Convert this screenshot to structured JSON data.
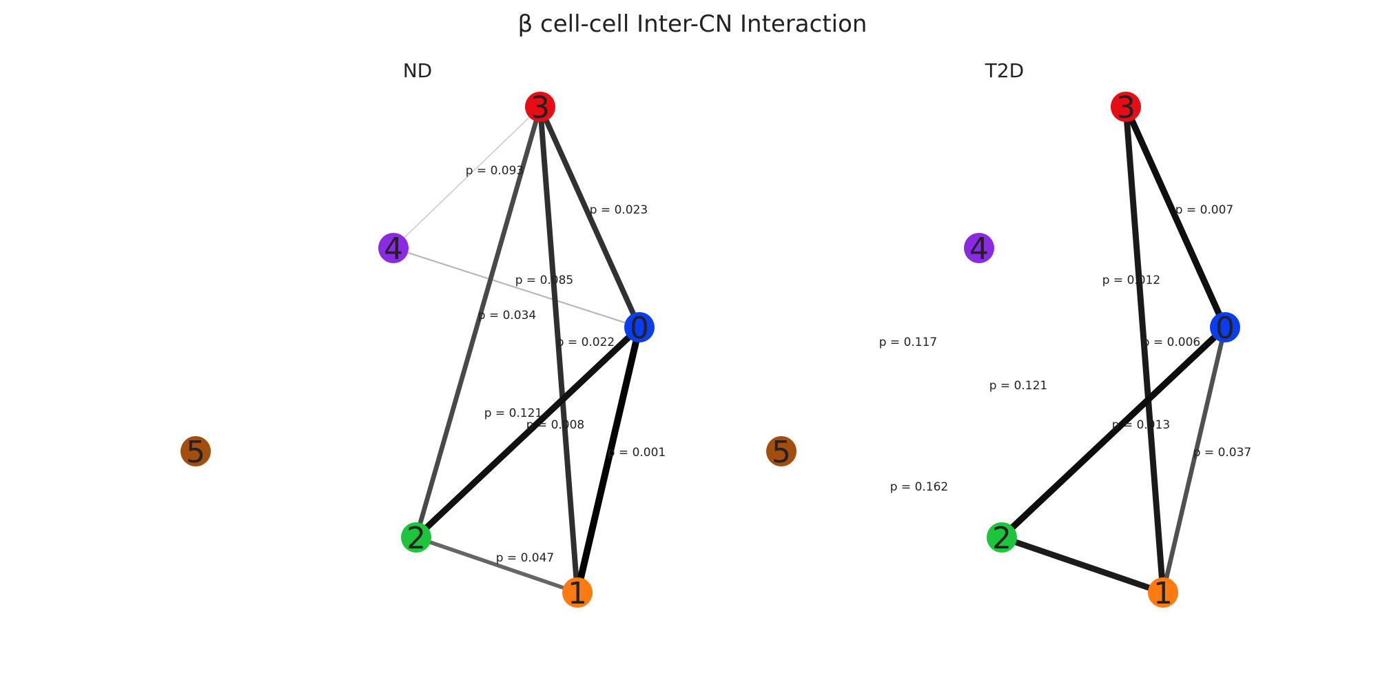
{
  "title": "β cell-cell Inter-CN Interaction",
  "node_colors": {
    "0": "#0a3cf0",
    "1": "#ff7a10",
    "2": "#1ec43c",
    "3": "#e80c14",
    "4": "#8a2be2",
    "5": "#a34d0f"
  },
  "panels": [
    {
      "name": "ND",
      "title": "ND",
      "nodes": [
        "0",
        "1",
        "2",
        "3",
        "4",
        "5"
      ],
      "edges": [
        {
          "source": "3",
          "target": "4",
          "label": "p = 0.093",
          "p": 0.093
        },
        {
          "source": "3",
          "target": "0",
          "label": "p = 0.023",
          "p": 0.023
        },
        {
          "source": "4",
          "target": "0",
          "label": "p = 0.085",
          "p": 0.085
        },
        {
          "source": "3",
          "target": "2",
          "label": "p = 0.034",
          "p": 0.034
        },
        {
          "source": "3",
          "target": "1",
          "label": "p = 0.022",
          "p": 0.022
        },
        {
          "source": "2",
          "target": "0",
          "label": "p = 0.008",
          "p": 0.008
        },
        {
          "source": "0",
          "target": "1",
          "label": "p = 0.001",
          "p": 0.001
        },
        {
          "source": "2",
          "target": "1",
          "label": "p = 0.047",
          "p": 0.047
        },
        {
          "source": "4",
          "target": "1",
          "label": "p = 0.121",
          "p": 0.121
        }
      ]
    },
    {
      "name": "T2D",
      "title": "T2D",
      "nodes": [
        "0",
        "1",
        "2",
        "3",
        "4",
        "5"
      ],
      "edges": [
        {
          "source": "3",
          "target": "0",
          "label": "p = 0.007",
          "p": 0.007
        },
        {
          "source": "3",
          "target": "1",
          "label": "p = 0.012",
          "p": 0.012
        },
        {
          "source": "2",
          "target": "0",
          "label": "p = 0.006",
          "p": 0.006
        },
        {
          "source": "0",
          "target": "1",
          "label": "p = 0.037",
          "p": 0.037
        },
        {
          "source": "2",
          "target": "1",
          "label": "p = 0.013",
          "p": 0.013
        },
        {
          "source": "4",
          "target": "2",
          "label": "p = 0.117",
          "p": 0.117
        },
        {
          "source": "4",
          "target": "1",
          "label": "p = 0.121",
          "p": 0.121
        },
        {
          "source": "5",
          "target": "1",
          "label": "p = 0.162",
          "p": 0.162
        }
      ]
    }
  ]
}
